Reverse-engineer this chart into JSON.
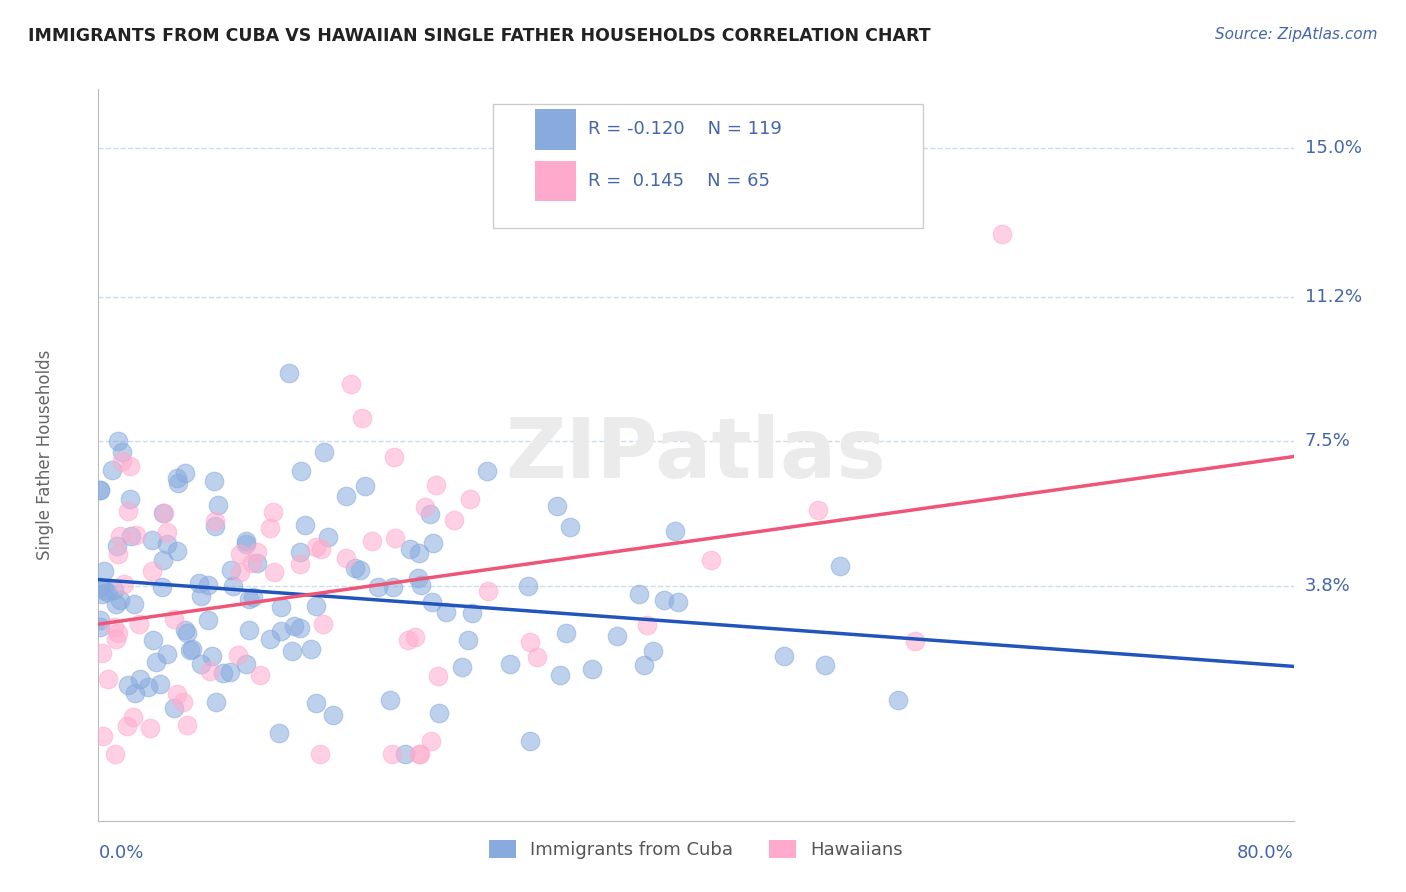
{
  "title": "IMMIGRANTS FROM CUBA VS HAWAIIAN SINGLE FATHER HOUSEHOLDS CORRELATION CHART",
  "source": "Source: ZipAtlas.com",
  "ylabel": "Single Father Households",
  "xlim": [
    0.0,
    0.8
  ],
  "ylim": [
    -0.022,
    0.165
  ],
  "ytick_vals": [
    0.038,
    0.075,
    0.112,
    0.15
  ],
  "ytick_labels": [
    "3.8%",
    "7.5%",
    "11.2%",
    "15.0%"
  ],
  "color_blue": "#88AADD",
  "color_pink": "#FFAACC",
  "color_blue_line": "#2255BB",
  "color_pink_line": "#EE5577",
  "color_axis_text": "#4466AA",
  "color_grid": "#CCDDEE",
  "color_title": "#222222",
  "color_source": "#4466AA",
  "color_ylabel": "#666666",
  "color_watermark": "#EBEBEB",
  "watermark": "ZIPatlas",
  "legend_r1": "R = -0.120",
  "legend_n1": "N = 119",
  "legend_r2": "R =  0.145",
  "legend_n2": "N = 65",
  "n_blue": 119,
  "n_pink": 65,
  "seed_blue": 42,
  "seed_pink": 99,
  "blue_trend_start": 0.038,
  "blue_trend_slope": -0.008,
  "pink_trend_start": 0.03,
  "pink_trend_slope": 0.01,
  "marker_size": 180,
  "marker_alpha": 0.55
}
